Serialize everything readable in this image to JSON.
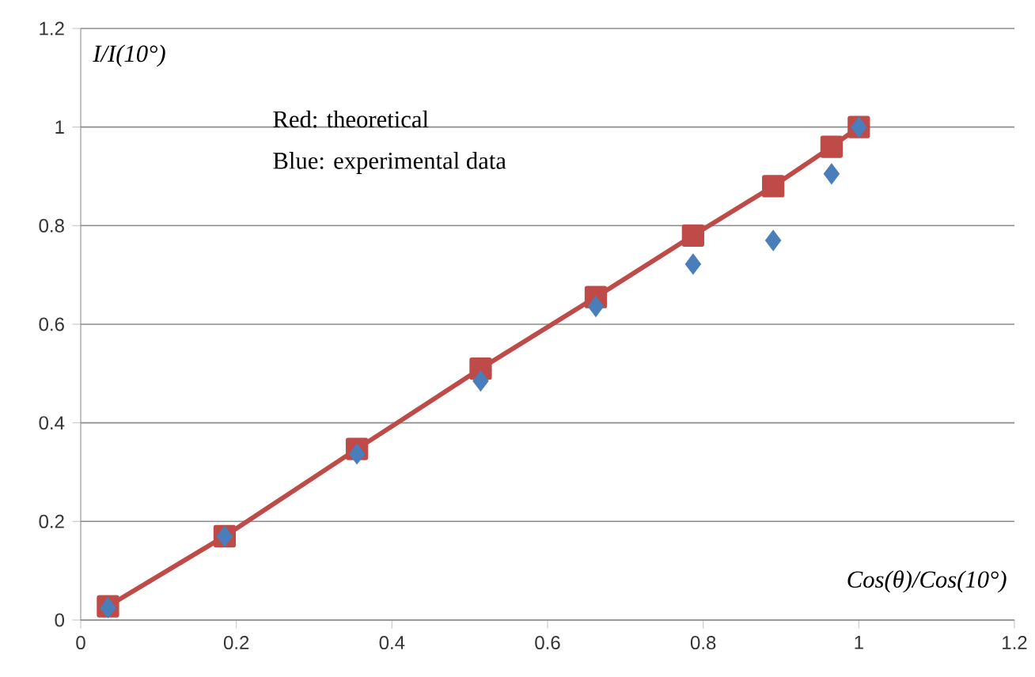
{
  "chart_data": {
    "type": "line",
    "xlabel": "Cos(θ)/Cos(10°)",
    "ylabel": "I/I(10°)",
    "xlim": [
      0,
      1.2
    ],
    "ylim": [
      0,
      1.2
    ],
    "xticks": [
      0,
      0.2,
      0.4,
      0.6,
      0.8,
      1,
      1.2
    ],
    "yticks": [
      0,
      0.2,
      0.4,
      0.6,
      0.8,
      1,
      1.2
    ],
    "grid": "y",
    "annotations": [
      "Red: theoretical",
      "Blue: experimental data"
    ],
    "series": [
      {
        "color": "#be4b48",
        "marker": "square",
        "line_style": "solid",
        "x": [
          0.035,
          0.185,
          0.355,
          0.514,
          0.662,
          0.787,
          0.89,
          0.965,
          1.0
        ],
        "values": [
          0.028,
          0.17,
          0.347,
          0.51,
          0.655,
          0.78,
          0.88,
          0.96,
          1.0
        ]
      },
      {
        "type": "scatter",
        "color": "#4a7ebb",
        "marker": "diamond",
        "x": [
          0.035,
          0.185,
          0.355,
          0.514,
          0.662,
          0.787,
          0.89,
          0.965,
          1.0
        ],
        "values": [
          0.025,
          0.17,
          0.337,
          0.485,
          0.636,
          0.722,
          0.77,
          0.905,
          1.0
        ]
      }
    ]
  }
}
